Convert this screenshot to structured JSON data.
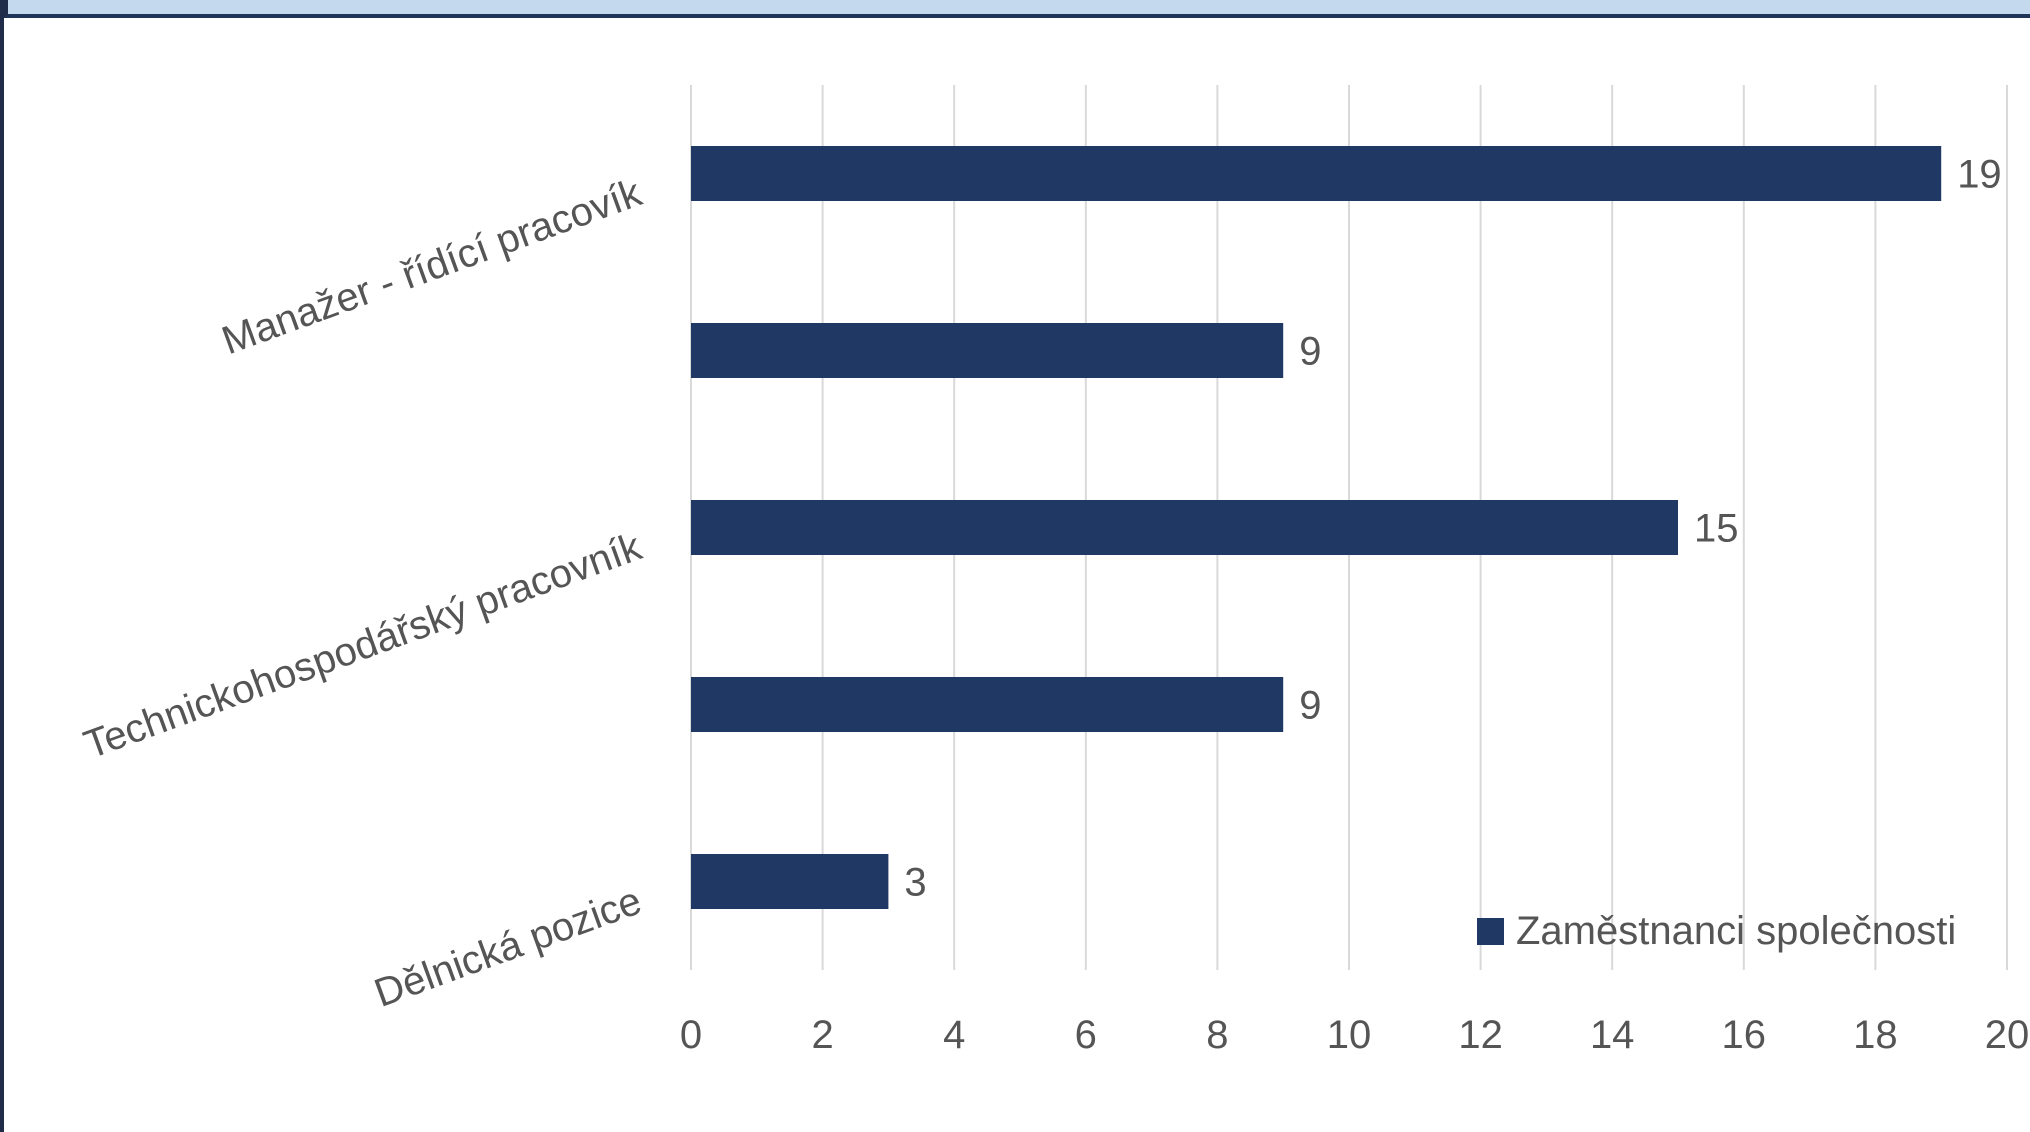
{
  "chart_data": {
    "type": "bar",
    "orientation": "horizontal",
    "categories": [
      "Manažer - řídící pracovík",
      "",
      "Technickohospodářský pracovník",
      "",
      "Dělnická pozice"
    ],
    "series": [
      {
        "name": "Zaměstnanci společnosti",
        "values": [
          19,
          9,
          15,
          9,
          3
        ],
        "color": "#203864"
      }
    ],
    "data_labels": [
      "19",
      "9",
      "15",
      "9",
      "3"
    ],
    "xlim": [
      0,
      20
    ],
    "x_ticks": [
      0,
      2,
      4,
      6,
      8,
      10,
      12,
      14,
      16,
      18,
      20
    ],
    "x_tick_labels": [
      "0",
      "2",
      "4",
      "6",
      "8",
      "10",
      "12",
      "14",
      "16",
      "18",
      "20"
    ],
    "grid": "vertical",
    "legend_position": "bottom-right",
    "title": "",
    "xlabel": "",
    "ylabel": ""
  }
}
